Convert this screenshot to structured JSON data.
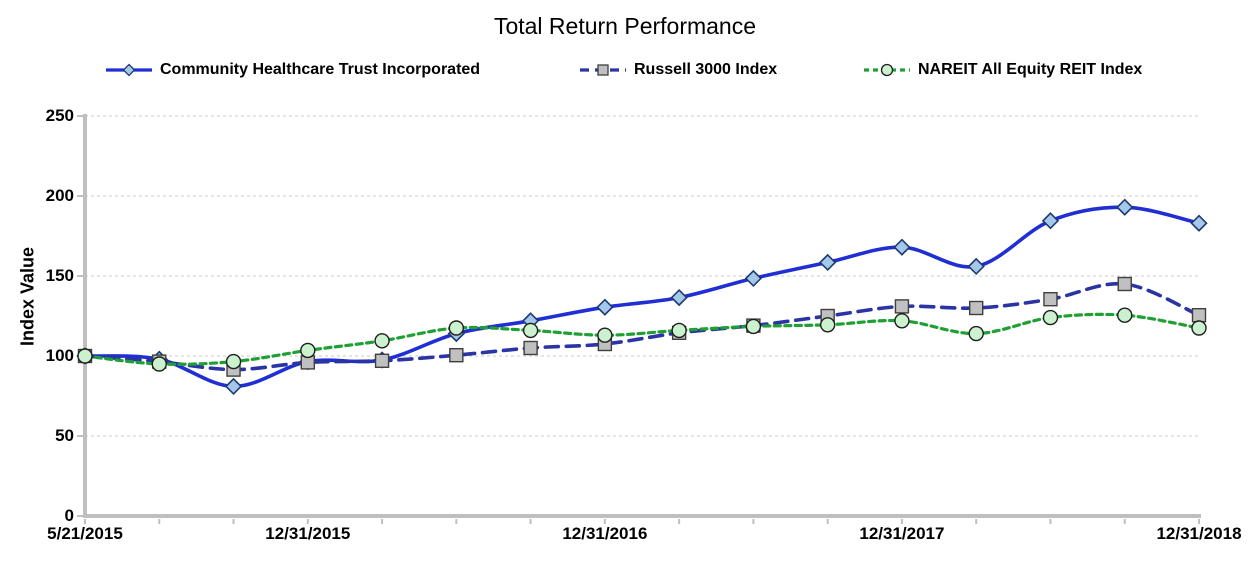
{
  "title": "Total Return Performance",
  "colors": {
    "background": "#FFFFFF",
    "text": "#000000",
    "axis": "#BFBFBF",
    "gridline": "#C8C8C8",
    "series_blue": "#1F2FD4",
    "series_navy": "#2A34A4",
    "series_green": "#1FA034",
    "marker_diamond_fill": "#A4C7EA",
    "marker_square_fill": "#C0C0C0",
    "marker_circle_fill": "#CBF1CE"
  },
  "chart_data": {
    "type": "line",
    "title": "Total Return Performance",
    "xlabel": "",
    "ylabel": "Index Value",
    "ylim": [
      0,
      250
    ],
    "y_ticks": [
      0,
      50,
      100,
      150,
      200,
      250
    ],
    "grid": true,
    "legend_position": "top",
    "x": [
      "5/21/2015",
      "6/30/2015",
      "9/30/2015",
      "12/31/2015",
      "3/31/2016",
      "6/30/2016",
      "9/30/2016",
      "12/31/2016",
      "3/31/2017",
      "6/30/2017",
      "9/30/2017",
      "12/31/2017",
      "3/31/2018",
      "6/30/2018",
      "9/30/2018",
      "12/31/2018"
    ],
    "x_label_indices": [
      0,
      3,
      7,
      11,
      15
    ],
    "series": [
      {
        "name": "Community Healthcare Trust Incorporated",
        "color": "#1F2FD4",
        "dash": "solid",
        "line_width": 3.6,
        "marker": "diamond",
        "marker_fill": "#A4C7EA",
        "marker_stroke": "#1C3A6E",
        "values": [
          100,
          98,
          81,
          96.5,
          97.5,
          114,
          122,
          130.5,
          136.5,
          148.5,
          158.5,
          168,
          156,
          184.5,
          193,
          183
        ]
      },
      {
        "name": "Russell 3000 Index",
        "color": "#2A34A4",
        "dash": "long-dash",
        "line_width": 3.6,
        "marker": "square",
        "marker_fill": "#C0C0C0",
        "marker_stroke": "#3F3F3F",
        "values": [
          100,
          96.5,
          91.5,
          96,
          97,
          100.5,
          105,
          107.5,
          114.5,
          119,
          125,
          131,
          130,
          135.5,
          145,
          125.5
        ]
      },
      {
        "name": "NAREIT All Equity REIT Index",
        "color": "#1FA034",
        "dash": "dash",
        "line_width": 3.2,
        "marker": "circle",
        "marker_fill": "#CBF1CE",
        "marker_stroke": "#1E1E1E",
        "values": [
          100,
          95,
          96.5,
          103.5,
          109.5,
          117.5,
          116,
          113,
          116,
          118.5,
          119.5,
          122,
          114,
          124,
          125.5,
          117.5
        ]
      }
    ]
  }
}
